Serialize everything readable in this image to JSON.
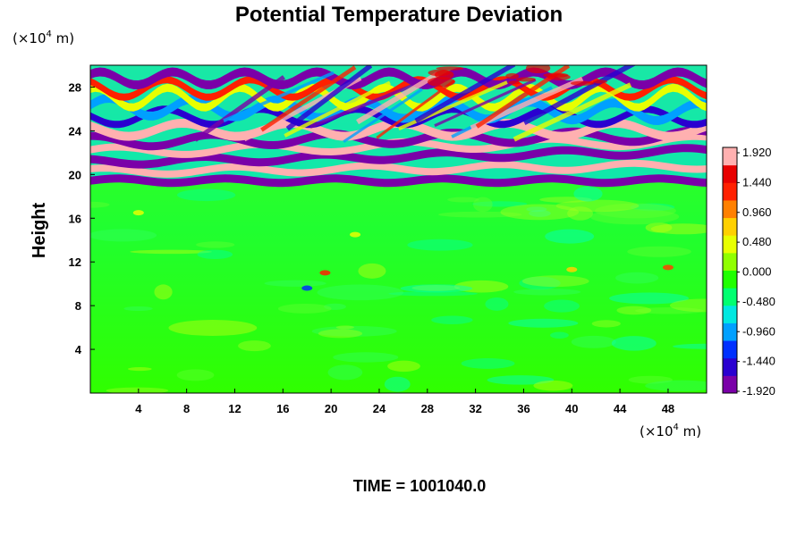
{
  "chart_data": {
    "type": "heatmap",
    "title": "Potential Temperature Deviation",
    "ylabel": "Height",
    "x_unit": {
      "prefix": "(×10",
      "exp": "4",
      "suffix": " m)"
    },
    "y_unit": {
      "prefix": "(×10",
      "exp": "4",
      "suffix": " m)"
    },
    "x_ticks": [
      4,
      8,
      12,
      16,
      20,
      24,
      28,
      32,
      36,
      40,
      44,
      48
    ],
    "y_ticks": [
      4,
      8,
      12,
      16,
      20,
      24,
      28
    ],
    "xlim": [
      0,
      51.2
    ],
    "ylim": [
      0,
      30
    ],
    "colorbar": {
      "range": [
        -1.92,
        1.92
      ],
      "tick_labels": [
        "1.920",
        "1.440",
        "0.960",
        "0.480",
        "0.000",
        "-0.480",
        "-0.960",
        "-1.440",
        "-1.920"
      ],
      "colors": [
        "#7a00a8",
        "#2a00d0",
        "#0030ff",
        "#00a0ff",
        "#00e8e0",
        "#00ff70",
        "#20ff00",
        "#90ff00",
        "#e8ff00",
        "#ffd000",
        "#ff8000",
        "#ff2000",
        "#e80000",
        "#ffb0b0"
      ]
    },
    "field_description": {
      "stratosphere_bands_y": [
        19.5,
        30
      ],
      "troposphere_near_zero_y": [
        0,
        19
      ]
    },
    "time_label": "TIME = 1001040.0"
  }
}
